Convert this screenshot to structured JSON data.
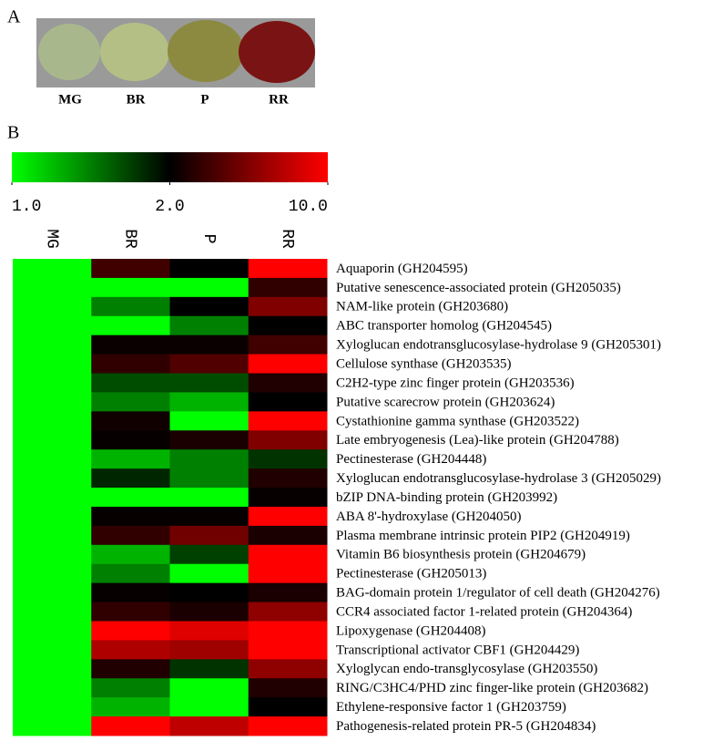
{
  "figure": {
    "panel_a_label": "A",
    "photo_labels": [
      "MG",
      "BR",
      "P",
      "RR"
    ],
    "panel_b_label": "B"
  },
  "chart_data": {
    "type": "heatmap",
    "columns": [
      "MG",
      "BR",
      "P",
      "RR"
    ],
    "rows": [
      "Aquaporin (GH204595)",
      "Putative senescence-associated protein (GH205035)",
      "NAM-like protein (GH203680)",
      "ABC transporter homolog (GH204545)",
      "Xyloglucan endotransglucosylase-hydrolase 9 (GH205301)",
      "Cellulose synthase (GH203535)",
      "C2H2-type zinc finger protein (GH203536)",
      "Putative scarecrow protein (GH203624)",
      "Cystathionine gamma synthase (GH203522)",
      "Late embryogenesis (Lea)-like protein (GH204788)",
      "Pectinesterase (GH204448)",
      "Xyloglucan endotransglucosylase-hydrolase 3 (GH205029)",
      "bZIP DNA-binding protein (GH203992)",
      "ABA 8'-hydroxylase (GH204050)",
      "Plasma membrane intrinsic protein PIP2 (GH204919)",
      "Vitamin B6 biosynthesis protein (GH204679)",
      "Pectinesterase (GH205013)",
      "BAG-domain protein 1/regulator of cell death (GH204276)",
      "CCR4 associated factor 1-related protein (GH204364)",
      "Lipoxygenase (GH204408)",
      "Transcriptional activator CBF1 (GH204429)",
      "Xyloglycan endo-transglycosylase (GH203550)",
      "RING/C3HC4/PHD zinc finger-like protein (GH203682)",
      "Ethylene-responsive factor 1 (GH203759)",
      "Pathogenesis-related protein PR-5 (GH204834)"
    ],
    "values": [
      [
        1,
        4,
        2,
        10
      ],
      [
        1,
        1,
        1,
        3.5
      ],
      [
        1,
        1.5,
        2,
        6
      ],
      [
        1,
        1,
        1.5,
        2
      ],
      [
        1,
        2.3,
        2.3,
        4
      ],
      [
        1,
        3.5,
        4.5,
        10
      ],
      [
        1,
        1.7,
        1.7,
        3
      ],
      [
        1,
        1.5,
        1.3,
        2
      ],
      [
        1,
        2.5,
        1,
        10
      ],
      [
        1,
        2.2,
        2.8,
        6
      ],
      [
        1,
        1.3,
        1.5,
        1.8
      ],
      [
        1,
        1.85,
        1.5,
        3
      ],
      [
        1,
        1,
        1,
        2.2
      ],
      [
        1,
        2.2,
        2.2,
        10
      ],
      [
        1,
        3.5,
        5.5,
        2.8
      ],
      [
        1,
        1.3,
        1.75,
        10
      ],
      [
        1,
        1.5,
        1,
        10
      ],
      [
        1,
        2.2,
        2,
        2.8
      ],
      [
        1,
        3.5,
        2.8,
        6.5
      ],
      [
        1,
        10,
        9,
        10
      ],
      [
        1,
        7.5,
        7,
        10
      ],
      [
        1,
        3,
        1.8,
        6.5
      ],
      [
        1,
        1.5,
        1,
        3
      ],
      [
        1,
        1.3,
        1,
        2
      ],
      [
        1,
        10,
        8,
        10
      ]
    ],
    "colorbar": {
      "ticks": [
        {
          "value": 1,
          "label": "1.0"
        },
        {
          "value": 2,
          "label": "2.0"
        },
        {
          "value": 10,
          "label": "10.0"
        }
      ],
      "colors": [
        "#00ff00",
        "#000000",
        "#ff0000"
      ]
    }
  }
}
